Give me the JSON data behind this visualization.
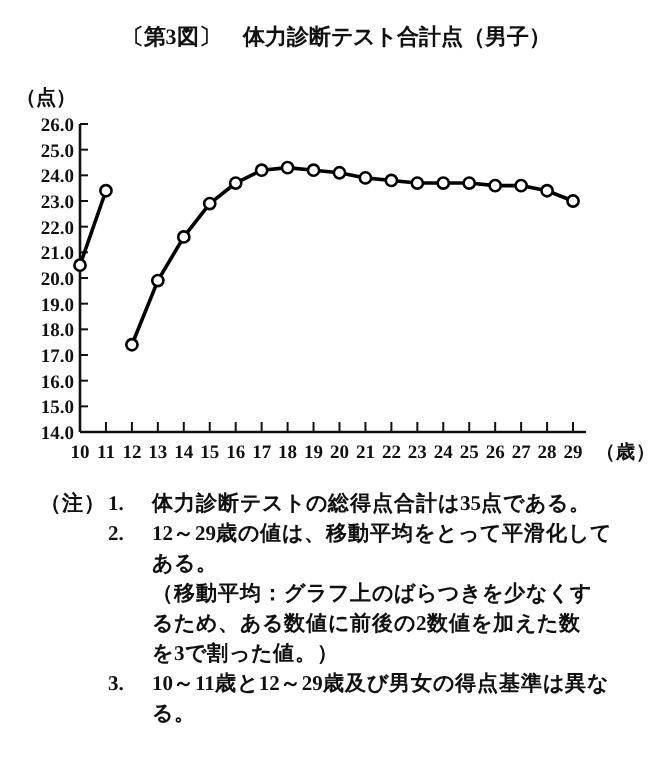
{
  "chart_data": {
    "type": "line",
    "title": "〔第3図〕　体力診断テスト合計点（男子）",
    "ylabel": "（点）",
    "xlabel": "（歳）",
    "x": [
      10,
      11,
      12,
      13,
      14,
      15,
      16,
      17,
      18,
      19,
      20,
      21,
      22,
      23,
      24,
      25,
      26,
      27,
      28,
      29
    ],
    "xlim": [
      10,
      29.5
    ],
    "xticks": [
      10,
      11,
      12,
      13,
      14,
      15,
      16,
      17,
      18,
      19,
      20,
      21,
      22,
      23,
      24,
      25,
      26,
      27,
      28,
      29
    ],
    "ylim": [
      14,
      26
    ],
    "yticks": [
      {
        "value": 14,
        "label": "14.0"
      },
      {
        "value": 15,
        "label": "15.0"
      },
      {
        "value": 16,
        "label": "16.0"
      },
      {
        "value": 17,
        "label": "17.0"
      },
      {
        "value": 18,
        "label": "18.0"
      },
      {
        "value": 19,
        "label": "19.0"
      },
      {
        "value": 20,
        "label": "20.0"
      },
      {
        "value": 21,
        "label": "21.0"
      },
      {
        "value": 22,
        "label": "22.0"
      },
      {
        "value": 23,
        "label": "23.0"
      },
      {
        "value": 24,
        "label": "24.0"
      },
      {
        "value": 25,
        "label": "25.0"
      },
      {
        "value": 26,
        "label": "26.0"
      }
    ],
    "marker": "circle",
    "series": [
      {
        "color": "#000000",
        "values": [
          20.5,
          23.4,
          null,
          null,
          null,
          null,
          null,
          null,
          null,
          null,
          null,
          null,
          null,
          null,
          null,
          null,
          null,
          null,
          null,
          null
        ]
      },
      {
        "color": "#000000",
        "values": [
          null,
          null,
          17.4,
          19.9,
          21.6,
          22.9,
          23.7,
          24.2,
          24.3,
          24.2,
          24.1,
          23.9,
          23.8,
          23.7,
          23.7,
          23.7,
          23.6,
          23.6,
          23.4,
          23.0
        ]
      }
    ],
    "annotations": [
      "（注）",
      "1.　体力診断テストの総得点合計は35点である。",
      "2.　12～29歳の値は、移動平均をとって平滑化してある。",
      "（移動平均：グラフ上のばらつきを少なくするため、ある数値に前後の2数値を加えた数を3で割った値。）",
      "3.　10～11歳と12～29歳及び男女の得点基準は異なる。"
    ]
  }
}
